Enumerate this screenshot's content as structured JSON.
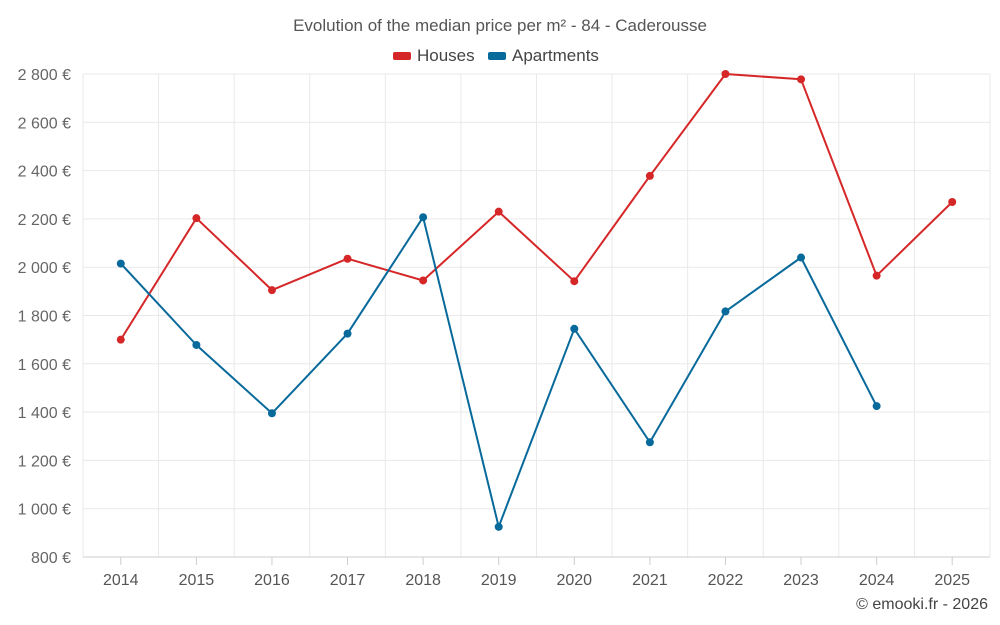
{
  "chart_data": {
    "type": "line",
    "title": "Evolution of the median price per m² - 84 - Caderousse",
    "categories": [
      "2014",
      "2015",
      "2016",
      "2017",
      "2018",
      "2019",
      "2020",
      "2021",
      "2022",
      "2023",
      "2024",
      "2025"
    ],
    "series": [
      {
        "name": "Houses",
        "color": "#d62728",
        "values": [
          1700,
          2203,
          1905,
          2035,
          1945,
          2230,
          1942,
          2378,
          2800,
          2778,
          1965,
          2270
        ]
      },
      {
        "name": "Apartments",
        "color": "#08699b",
        "values": [
          2015,
          1678,
          1395,
          1725,
          2207,
          925,
          1745,
          1275,
          1817,
          2040,
          1425,
          null
        ]
      }
    ],
    "ylim": [
      800,
      2800
    ],
    "yticks": [
      800,
      1000,
      1200,
      1400,
      1600,
      1800,
      2000,
      2200,
      2400,
      2600,
      2800
    ],
    "ytick_labels": [
      "800 €",
      "1 000 €",
      "1 200 €",
      "1 400 €",
      "1 600 €",
      "1 800 €",
      "2 000 €",
      "2 200 €",
      "2 400 €",
      "2 600 €",
      "2 800 €"
    ],
    "legend_position": "top-center",
    "grid": true,
    "xlabel": "",
    "ylabel": ""
  },
  "credit": "© emooki.fr - 2026"
}
